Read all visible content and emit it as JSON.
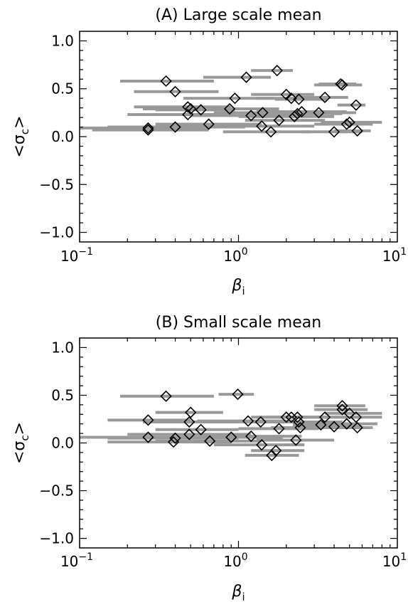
{
  "chart_data": [
    {
      "type": "scatter",
      "title": "(A) Large scale mean",
      "xlabel": "β",
      "xlabel_sub": "i",
      "ylabel_left": "<σ",
      "ylabel_sub": "c",
      "ylabel_right": ">",
      "xscale": "log",
      "xlim": [
        0.1,
        10
      ],
      "ylim": [
        -1.1,
        1.1
      ],
      "xticks": [
        {
          "value": 0.1,
          "base": "10",
          "exp": "−1"
        },
        {
          "value": 1,
          "base": "10",
          "exp": "0"
        },
        {
          "value": 10,
          "base": "10",
          "exp": "1"
        }
      ],
      "yticks": [
        {
          "value": 1.0,
          "label": "1.0"
        },
        {
          "value": 0.5,
          "label": "0.5"
        },
        {
          "value": 0.0,
          "label": "0.0"
        },
        {
          "value": -0.5,
          "label": "−0.5"
        },
        {
          "value": -1.0,
          "label": "−1.0"
        }
      ],
      "grid": false,
      "marker_color": "#000000",
      "errorbar_color": "#999999",
      "points": [
        {
          "x": 0.35,
          "y": 0.58,
          "xerr": [
            0.18,
            0.7
          ]
        },
        {
          "x": 0.4,
          "y": 0.47,
          "xerr": [
            0.22,
            0.75
          ]
        },
        {
          "x": 1.12,
          "y": 0.62,
          "xerr": [
            0.6,
            1.6
          ]
        },
        {
          "x": 1.75,
          "y": 0.69,
          "xerr": [
            1.2,
            2.2
          ]
        },
        {
          "x": 4.5,
          "y": 0.54,
          "xerr": [
            3.0,
            6.0
          ]
        },
        {
          "x": 4.4,
          "y": 0.55,
          "xerr": [
            3.2,
            5.5
          ]
        },
        {
          "x": 0.95,
          "y": 0.4,
          "xerr": [
            0.45,
            1.7
          ]
        },
        {
          "x": 2.0,
          "y": 0.44,
          "xerr": [
            1.2,
            3.0
          ]
        },
        {
          "x": 2.15,
          "y": 0.4,
          "xerr": [
            1.3,
            3.3
          ]
        },
        {
          "x": 2.4,
          "y": 0.39,
          "xerr": [
            1.7,
            3.6
          ]
        },
        {
          "x": 3.5,
          "y": 0.41,
          "xerr": [
            2.3,
            4.9
          ]
        },
        {
          "x": 5.5,
          "y": 0.33,
          "xerr": [
            4.2,
            6.3
          ]
        },
        {
          "x": 0.48,
          "y": 0.31,
          "xerr": [
            0.22,
            0.9
          ]
        },
        {
          "x": 0.5,
          "y": 0.29,
          "xerr": [
            0.25,
            0.85
          ]
        },
        {
          "x": 0.48,
          "y": 0.23,
          "xerr": [
            0.2,
            0.95
          ]
        },
        {
          "x": 0.58,
          "y": 0.28,
          "xerr": [
            0.3,
            0.95
          ]
        },
        {
          "x": 0.88,
          "y": 0.29,
          "xerr": [
            0.4,
            1.8
          ]
        },
        {
          "x": 1.2,
          "y": 0.22,
          "xerr": [
            0.5,
            2.2
          ]
        },
        {
          "x": 1.42,
          "y": 0.25,
          "xerr": [
            0.7,
            2.4
          ]
        },
        {
          "x": 2.25,
          "y": 0.21,
          "xerr": [
            1.0,
            4.0
          ]
        },
        {
          "x": 2.35,
          "y": 0.24,
          "xerr": [
            1.2,
            4.5
          ]
        },
        {
          "x": 2.5,
          "y": 0.26,
          "xerr": [
            1.3,
            4.8
          ]
        },
        {
          "x": 3.2,
          "y": 0.25,
          "xerr": [
            1.9,
            5.5
          ]
        },
        {
          "x": 0.27,
          "y": 0.09,
          "xerr": [
            0.1,
            0.6
          ]
        },
        {
          "x": 0.27,
          "y": 0.07,
          "xerr": [
            0.12,
            0.65
          ]
        },
        {
          "x": 0.4,
          "y": 0.1,
          "xerr": [
            0.15,
            1.1
          ]
        },
        {
          "x": 0.65,
          "y": 0.13,
          "xerr": [
            0.3,
            1.4
          ]
        },
        {
          "x": 1.4,
          "y": 0.11,
          "xerr": [
            0.5,
            3.0
          ]
        },
        {
          "x": 1.6,
          "y": 0.05,
          "xerr": [
            0.8,
            2.8
          ]
        },
        {
          "x": 1.8,
          "y": 0.17,
          "xerr": [
            1.1,
            3.5
          ]
        },
        {
          "x": 4.0,
          "y": 0.05,
          "xerr": [
            2.5,
            6.0
          ]
        },
        {
          "x": 4.8,
          "y": 0.13,
          "xerr": [
            3.0,
            7.0
          ]
        },
        {
          "x": 5.0,
          "y": 0.15,
          "xerr": [
            3.3,
            8.0
          ]
        },
        {
          "x": 5.6,
          "y": 0.06,
          "xerr": [
            4.0,
            6.8
          ]
        }
      ]
    },
    {
      "type": "scatter",
      "title": "(B) Small scale mean",
      "xlabel": "β",
      "xlabel_sub": "i",
      "ylabel_left": "<σ",
      "ylabel_sub": "c",
      "ylabel_right": ">",
      "xscale": "log",
      "xlim": [
        0.1,
        10
      ],
      "ylim": [
        -1.1,
        1.1
      ],
      "xticks": [
        {
          "value": 0.1,
          "base": "10",
          "exp": "−1"
        },
        {
          "value": 1,
          "base": "10",
          "exp": "0"
        },
        {
          "value": 10,
          "base": "10",
          "exp": "1"
        }
      ],
      "yticks": [
        {
          "value": 1.0,
          "label": "1.0"
        },
        {
          "value": 0.5,
          "label": "0.5"
        },
        {
          "value": 0.0,
          "label": "0.0"
        },
        {
          "value": -0.5,
          "label": "−0.5"
        },
        {
          "value": -1.0,
          "label": "−1.0"
        }
      ],
      "grid": false,
      "marker_color": "#000000",
      "errorbar_color": "#999999",
      "points": [
        {
          "x": 0.35,
          "y": 0.49,
          "xerr": [
            0.18,
            0.7
          ]
        },
        {
          "x": 0.99,
          "y": 0.51,
          "xerr": [
            0.75,
            1.25
          ]
        },
        {
          "x": 0.27,
          "y": 0.24,
          "xerr": [
            0.15,
            0.5
          ]
        },
        {
          "x": 0.5,
          "y": 0.32,
          "xerr": [
            0.3,
            0.8
          ]
        },
        {
          "x": 0.49,
          "y": 0.22,
          "xerr": [
            0.25,
            0.9
          ]
        },
        {
          "x": 0.58,
          "y": 0.14,
          "xerr": [
            0.3,
            1.0
          ]
        },
        {
          "x": 0.27,
          "y": 0.06,
          "xerr": [
            0.1,
            0.8
          ]
        },
        {
          "x": 0.4,
          "y": 0.05,
          "xerr": [
            0.15,
            1.0
          ]
        },
        {
          "x": 0.39,
          "y": 0.01,
          "xerr": [
            0.15,
            0.9
          ]
        },
        {
          "x": 0.49,
          "y": 0.09,
          "xerr": [
            0.2,
            1.2
          ]
        },
        {
          "x": 0.66,
          "y": 0.02,
          "xerr": [
            0.3,
            1.4
          ]
        },
        {
          "x": 0.9,
          "y": 0.06,
          "xerr": [
            0.4,
            1.9
          ]
        },
        {
          "x": 1.15,
          "y": 0.23,
          "xerr": [
            0.55,
            2.2
          ]
        },
        {
          "x": 1.38,
          "y": 0.22,
          "xerr": [
            0.7,
            2.4
          ]
        },
        {
          "x": 1.2,
          "y": 0.07,
          "xerr": [
            0.6,
            2.5
          ]
        },
        {
          "x": 1.4,
          "y": -0.02,
          "xerr": [
            0.7,
            2.6
          ]
        },
        {
          "x": 1.62,
          "y": -0.13,
          "xerr": [
            1.1,
            2.4
          ]
        },
        {
          "x": 1.72,
          "y": -0.08,
          "xerr": [
            1.2,
            2.6
          ]
        },
        {
          "x": 1.8,
          "y": 0.15,
          "xerr": [
            1.0,
            3.2
          ]
        },
        {
          "x": 2.0,
          "y": 0.27,
          "xerr": [
            1.2,
            3.3
          ]
        },
        {
          "x": 2.15,
          "y": 0.27,
          "xerr": [
            1.3,
            3.6
          ]
        },
        {
          "x": 2.35,
          "y": 0.27,
          "xerr": [
            1.5,
            4.2
          ]
        },
        {
          "x": 2.4,
          "y": 0.22,
          "xerr": [
            1.6,
            4.5
          ]
        },
        {
          "x": 2.45,
          "y": 0.16,
          "xerr": [
            1.6,
            4.5
          ]
        },
        {
          "x": 2.3,
          "y": 0.03,
          "xerr": [
            1.3,
            4.0
          ]
        },
        {
          "x": 3.3,
          "y": 0.19,
          "xerr": [
            2.2,
            5.5
          ]
        },
        {
          "x": 3.5,
          "y": 0.27,
          "xerr": [
            2.3,
            6.0
          ]
        },
        {
          "x": 4.0,
          "y": 0.17,
          "xerr": [
            2.8,
            6.0
          ]
        },
        {
          "x": 4.5,
          "y": 0.39,
          "xerr": [
            3.0,
            6.3
          ]
        },
        {
          "x": 4.5,
          "y": 0.35,
          "xerr": [
            3.0,
            6.5
          ]
        },
        {
          "x": 4.8,
          "y": 0.2,
          "xerr": [
            3.2,
            7.5
          ]
        },
        {
          "x": 5.0,
          "y": 0.31,
          "xerr": [
            3.5,
            8.0
          ]
        },
        {
          "x": 5.5,
          "y": 0.27,
          "xerr": [
            4.0,
            8.0
          ]
        },
        {
          "x": 5.6,
          "y": 0.16,
          "xerr": [
            4.0,
            7.0
          ]
        }
      ]
    }
  ]
}
